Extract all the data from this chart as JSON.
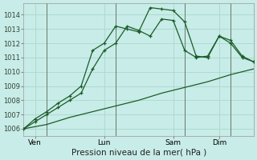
{
  "xlabel": "Pression niveau de la mer( hPa )",
  "bg_color": "#c8ece8",
  "grid_color": "#a8d8cc",
  "line_color": "#1a5c28",
  "ylim": [
    1005.5,
    1014.8
  ],
  "yticks": [
    1006,
    1007,
    1008,
    1009,
    1010,
    1011,
    1012,
    1013,
    1014
  ],
  "xtick_labels": [
    "Ven",
    "Lun",
    "Sam",
    "Dim"
  ],
  "xtick_positions": [
    0.5,
    3.5,
    6.5,
    8.5
  ],
  "xlim": [
    0,
    10
  ],
  "series_flat_x": [
    0,
    1,
    2,
    3,
    4,
    5,
    6,
    7,
    8,
    9,
    10
  ],
  "series_flat_y": [
    1006.0,
    1006.3,
    1006.8,
    1007.2,
    1007.6,
    1008.0,
    1008.5,
    1008.9,
    1009.3,
    1009.8,
    1010.2
  ],
  "series_mid_x": [
    0,
    0.5,
    1,
    1.5,
    2,
    2.5,
    3,
    3.5,
    4,
    4.5,
    5,
    5.5,
    6,
    6.5,
    7,
    7.5,
    8,
    8.5,
    9,
    9.5,
    10
  ],
  "series_mid_y": [
    1006.0,
    1006.5,
    1007.0,
    1007.5,
    1008.0,
    1008.5,
    1010.2,
    1011.5,
    1012.0,
    1013.2,
    1012.9,
    1012.5,
    1013.7,
    1013.6,
    1011.5,
    1011.0,
    1011.1,
    1012.5,
    1012.0,
    1011.0,
    1010.7
  ],
  "series_top_x": [
    0,
    0.5,
    1,
    1.5,
    2,
    2.5,
    3,
    3.5,
    4,
    4.5,
    5,
    5.5,
    6,
    6.5,
    7,
    7.5,
    8,
    8.5,
    9,
    9.5,
    10
  ],
  "series_top_y": [
    1006.0,
    1006.7,
    1007.2,
    1007.8,
    1008.3,
    1009.0,
    1011.5,
    1012.0,
    1013.2,
    1013.0,
    1012.8,
    1014.5,
    1014.4,
    1014.3,
    1013.5,
    1011.1,
    1011.0,
    1012.5,
    1012.2,
    1011.1,
    1010.7
  ],
  "vlines": [
    1,
    4,
    7,
    9
  ]
}
